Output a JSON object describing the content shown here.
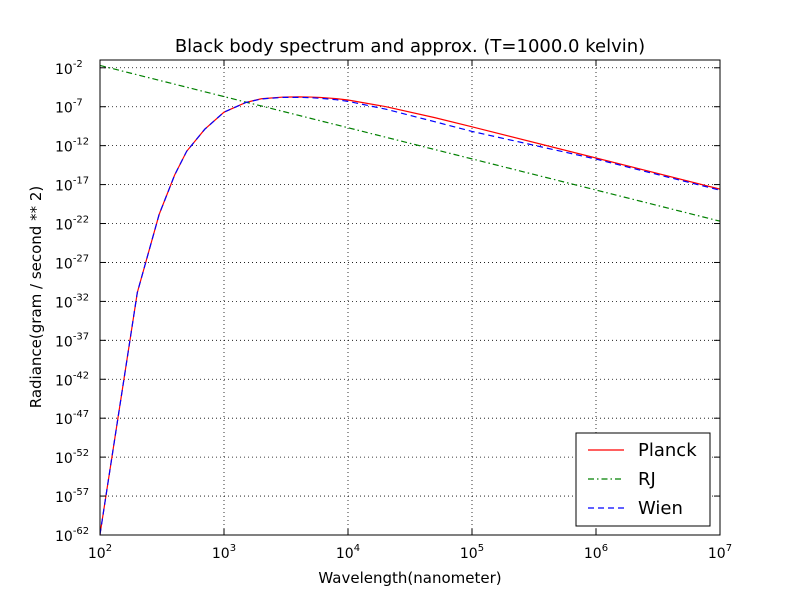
{
  "chart_data": {
    "type": "line",
    "title": "Black body spectrum and approx. (T=1000.0 kelvin)",
    "xlabel": "Wavelength(nanometer)",
    "ylabel": "Radiance(gram / second ** 2)",
    "x_scale": "log",
    "y_scale": "log",
    "xlim": [
      100,
      10000000
    ],
    "ylim": [
      1e-62,
      0.1
    ],
    "x_ticks": [
      {
        "base": "10",
        "exp": "2",
        "value": 100
      },
      {
        "base": "10",
        "exp": "3",
        "value": 1000
      },
      {
        "base": "10",
        "exp": "4",
        "value": 10000
      },
      {
        "base": "10",
        "exp": "5",
        "value": 100000
      },
      {
        "base": "10",
        "exp": "6",
        "value": 1000000
      },
      {
        "base": "10",
        "exp": "7",
        "value": 10000000
      }
    ],
    "y_ticks": [
      {
        "base": "10",
        "exp": "-62",
        "value": 1e-62
      },
      {
        "base": "10",
        "exp": "-57",
        "value": 1e-57
      },
      {
        "base": "10",
        "exp": "-52",
        "value": 1e-52
      },
      {
        "base": "10",
        "exp": "-47",
        "value": 1e-47
      },
      {
        "base": "10",
        "exp": "-42",
        "value": 1e-42
      },
      {
        "base": "10",
        "exp": "-37",
        "value": 1e-37
      },
      {
        "base": "10",
        "exp": "-32",
        "value": 1e-32
      },
      {
        "base": "10",
        "exp": "-27",
        "value": 1e-27
      },
      {
        "base": "10",
        "exp": "-22",
        "value": 1e-22
      },
      {
        "base": "10",
        "exp": "-17",
        "value": 1e-17
      },
      {
        "base": "10",
        "exp": "-12",
        "value": 1e-12
      },
      {
        "base": "10",
        "exp": "-7",
        "value": 1e-07
      },
      {
        "base": "10",
        "exp": "-2",
        "value": 0.01
      }
    ],
    "grid": true,
    "legend_position": "bottom-right",
    "x": [
      100,
      200,
      300,
      400,
      500,
      700,
      1000,
      1500,
      2000,
      3000,
      4000,
      5000,
      6000,
      7000,
      8000,
      10000,
      20000,
      50000,
      100000,
      1000000,
      10000000
    ],
    "series": [
      {
        "name": "Planck",
        "color": "#ff0000",
        "dash": "solid",
        "values": [
          1.2e-62,
          1.4e-31,
          1.5e-21,
          1.7e-16,
          1.9e-13,
          1.3e-10,
          2e-08,
          3.5e-07,
          1.05e-06,
          1.73e-06,
          1.84e-06,
          1.73e-06,
          1.52e-06,
          1.3e-06,
          1.1e-06,
          7.3e-07,
          1.04e-07,
          4e-09,
          2.6e-10,
          2.6e-14,
          2.6e-18
        ]
      },
      {
        "name": "RJ",
        "color": "#008000",
        "dash": "dashdot",
        "values": [
          0.02,
          0.00125,
          0.000247,
          7.8e-05,
          3.2e-05,
          8.3e-06,
          2e-06,
          3.9e-07,
          1.25e-07,
          2.47e-08,
          7.8e-09,
          3.2e-09,
          1.54e-09,
          8.3e-10,
          4.9e-10,
          2e-10,
          1.25e-11,
          3.2e-13,
          2e-14,
          2e-18,
          2e-22
        ]
      },
      {
        "name": "Wien",
        "color": "#0000ff",
        "dash": "dashed",
        "values": [
          1.2e-62,
          1.4e-31,
          1.5e-21,
          1.7e-16,
          1.9e-13,
          1.3e-10,
          2e-08,
          3.5e-07,
          1e-06,
          1.6e-06,
          1.6e-06,
          1.45e-06,
          1.2e-06,
          9.8e-07,
          8e-07,
          4.9e-07,
          5e-08,
          1.2e-09,
          6.7e-11,
          1.9e-14,
          1.9e-18
        ]
      }
    ]
  }
}
